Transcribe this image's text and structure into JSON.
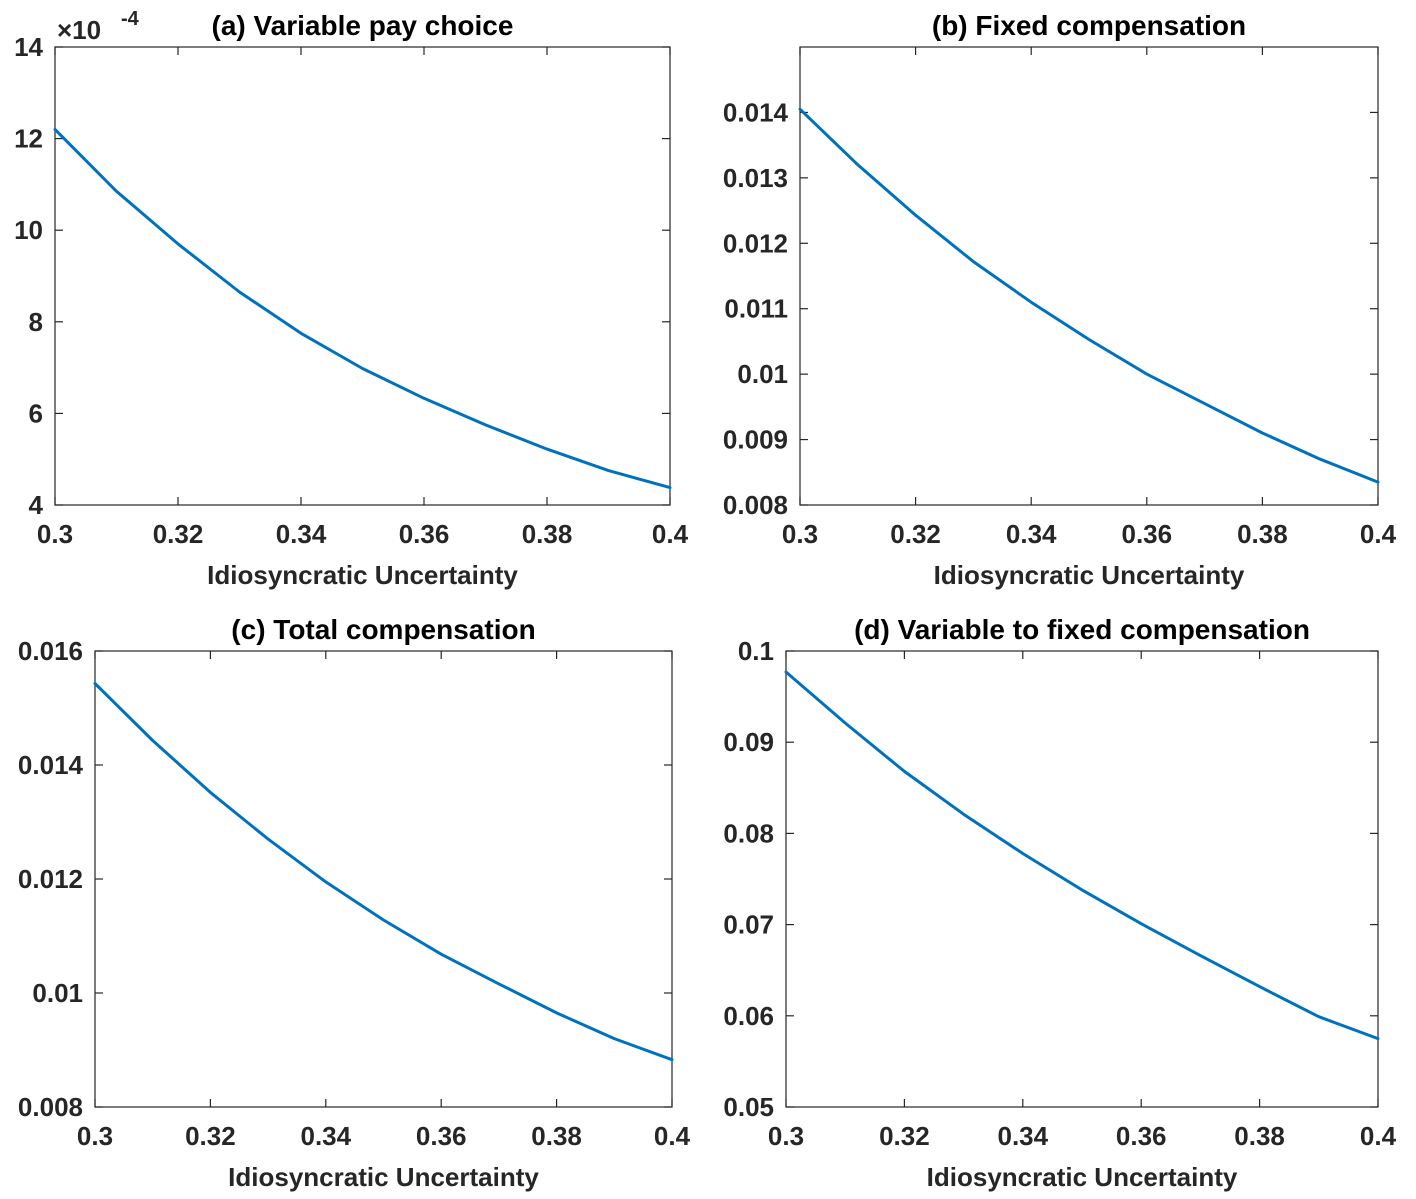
{
  "chart_data": [
    {
      "type": "line",
      "title": "(a) Variable pay choice",
      "xlabel": "Idiosyncratic Uncertainty",
      "ylabel": "",
      "y_exponent_label": "×10",
      "y_exponent_power": "-4",
      "xlim": [
        0.3,
        0.4
      ],
      "ylim": [
        4,
        14
      ],
      "xticks": [
        0.3,
        0.32,
        0.34,
        0.36,
        0.38,
        0.4
      ],
      "xtick_labels": [
        "0.3",
        "0.32",
        "0.34",
        "0.36",
        "0.38",
        "0.4"
      ],
      "yticks": [
        4,
        6,
        8,
        10,
        12,
        14
      ],
      "ytick_labels": [
        "4",
        "6",
        "8",
        "10",
        "12",
        "14"
      ],
      "grid": false,
      "color": "#0072BD",
      "x": [
        0.3,
        0.31,
        0.32,
        0.33,
        0.34,
        0.35,
        0.36,
        0.37,
        0.38,
        0.39,
        0.4
      ],
      "y": [
        12.2,
        10.85,
        9.7,
        8.65,
        7.75,
        6.98,
        6.33,
        5.75,
        5.22,
        4.75,
        4.38
      ]
    },
    {
      "type": "line",
      "title": "(b) Fixed compensation",
      "xlabel": "Idiosyncratic Uncertainty",
      "ylabel": "",
      "xlim": [
        0.3,
        0.4
      ],
      "ylim": [
        0.008,
        0.015
      ],
      "xticks": [
        0.3,
        0.32,
        0.34,
        0.36,
        0.38,
        0.4
      ],
      "xtick_labels": [
        "0.3",
        "0.32",
        "0.34",
        "0.36",
        "0.38",
        "0.4"
      ],
      "yticks": [
        0.008,
        0.009,
        0.01,
        0.011,
        0.012,
        0.013,
        0.014
      ],
      "ytick_labels": [
        "0.008",
        "0.009",
        "0.01",
        "0.011",
        "0.012",
        "0.013",
        "0.014"
      ],
      "grid": false,
      "color": "#0072BD",
      "x": [
        0.3,
        0.31,
        0.32,
        0.33,
        0.34,
        0.35,
        0.36,
        0.37,
        0.38,
        0.39,
        0.4
      ],
      "y": [
        0.01405,
        0.0132,
        0.01243,
        0.01172,
        0.0111,
        0.01053,
        0.01,
        0.00955,
        0.0091,
        0.0087,
        0.00835
      ]
    },
    {
      "type": "line",
      "title": "(c) Total compensation",
      "xlabel": "Idiosyncratic Uncertainty",
      "ylabel": "",
      "xlim": [
        0.3,
        0.4
      ],
      "ylim": [
        0.008,
        0.016
      ],
      "xticks": [
        0.3,
        0.32,
        0.34,
        0.36,
        0.38,
        0.4
      ],
      "xtick_labels": [
        "0.3",
        "0.32",
        "0.34",
        "0.36",
        "0.38",
        "0.4"
      ],
      "yticks": [
        0.008,
        0.01,
        0.012,
        0.014,
        0.016
      ],
      "ytick_labels": [
        "0.008",
        "0.01",
        "0.012",
        "0.014",
        "0.016"
      ],
      "grid": false,
      "color": "#0072BD",
      "x": [
        0.3,
        0.31,
        0.32,
        0.33,
        0.34,
        0.35,
        0.36,
        0.37,
        0.38,
        0.39,
        0.4
      ],
      "y": [
        0.01543,
        0.01443,
        0.01352,
        0.0127,
        0.01195,
        0.01128,
        0.01068,
        0.01016,
        0.00965,
        0.0092,
        0.00883
      ]
    },
    {
      "type": "line",
      "title": "(d) Variable to fixed compensation",
      "xlabel": "Idiosyncratic Uncertainty",
      "ylabel": "",
      "xlim": [
        0.3,
        0.4
      ],
      "ylim": [
        0.05,
        0.1
      ],
      "xticks": [
        0.3,
        0.32,
        0.34,
        0.36,
        0.38,
        0.4
      ],
      "xtick_labels": [
        "0.3",
        "0.32",
        "0.34",
        "0.36",
        "0.38",
        "0.4"
      ],
      "yticks": [
        0.05,
        0.06,
        0.07,
        0.08,
        0.09,
        0.1
      ],
      "ytick_labels": [
        "0.05",
        "0.06",
        "0.07",
        "0.08",
        "0.09",
        "0.1"
      ],
      "grid": false,
      "color": "#0072BD",
      "x": [
        0.3,
        0.31,
        0.32,
        0.33,
        0.34,
        0.35,
        0.36,
        0.37,
        0.38,
        0.39,
        0.4
      ],
      "y": [
        0.0977,
        0.0921,
        0.0868,
        0.0821,
        0.0778,
        0.0738,
        0.0701,
        0.0666,
        0.0632,
        0.0599,
        0.0575
      ]
    }
  ]
}
